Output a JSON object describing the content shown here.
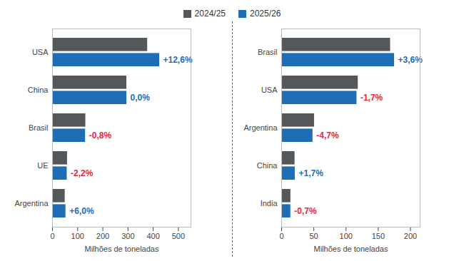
{
  "chart_data": [
    {
      "type": "bar",
      "orientation": "horizontal",
      "legend": "top",
      "grid": false,
      "x_label": "Milhões de toneladas",
      "categories": [
        "USA",
        "China",
        "Brasil",
        "UE",
        "Argentina"
      ],
      "xlim": [
        0,
        550
      ],
      "xticks": [
        0,
        100,
        200,
        300,
        400,
        500
      ],
      "series": [
        {
          "name": "2024/25",
          "color": "#54585a",
          "values": [
            377.6,
            294.9,
            132.0,
            59.3,
            50.0
          ]
        },
        {
          "name": "2025/26",
          "color": "#1f6db5",
          "values": [
            425.3,
            295.0,
            131.0,
            58.0,
            53.0
          ],
          "changes": [
            12.6,
            0.0,
            -0.8,
            -2.2,
            6.0
          ],
          "change_labels": [
            "+12,6%",
            "0,0%",
            "-0,8%",
            "-2,2%",
            "+6,0%"
          ]
        }
      ]
    },
    {
      "type": "bar",
      "orientation": "horizontal",
      "legend": "top",
      "grid": false,
      "x_label": "Milhões de toneladas",
      "categories": [
        "Brasil",
        "USA",
        "Argentina",
        "China",
        "India"
      ],
      "xlim": [
        0,
        215
      ],
      "xticks": [
        0,
        50,
        100,
        150,
        200
      ],
      "series": [
        {
          "name": "2024/25",
          "color": "#54585a",
          "values": [
            169.0,
            118.8,
            50.9,
            20.65,
            14.2
          ]
        },
        {
          "name": "2025/26",
          "color": "#1f6db5",
          "values": [
            175.1,
            116.8,
            48.5,
            21.0,
            14.1
          ],
          "changes": [
            3.6,
            -1.7,
            -4.7,
            1.7,
            -0.7
          ],
          "change_labels": [
            "+3,6%",
            "-1,7%",
            "-4,7%",
            "+1,7%",
            "-0,7%"
          ]
        }
      ]
    }
  ]
}
